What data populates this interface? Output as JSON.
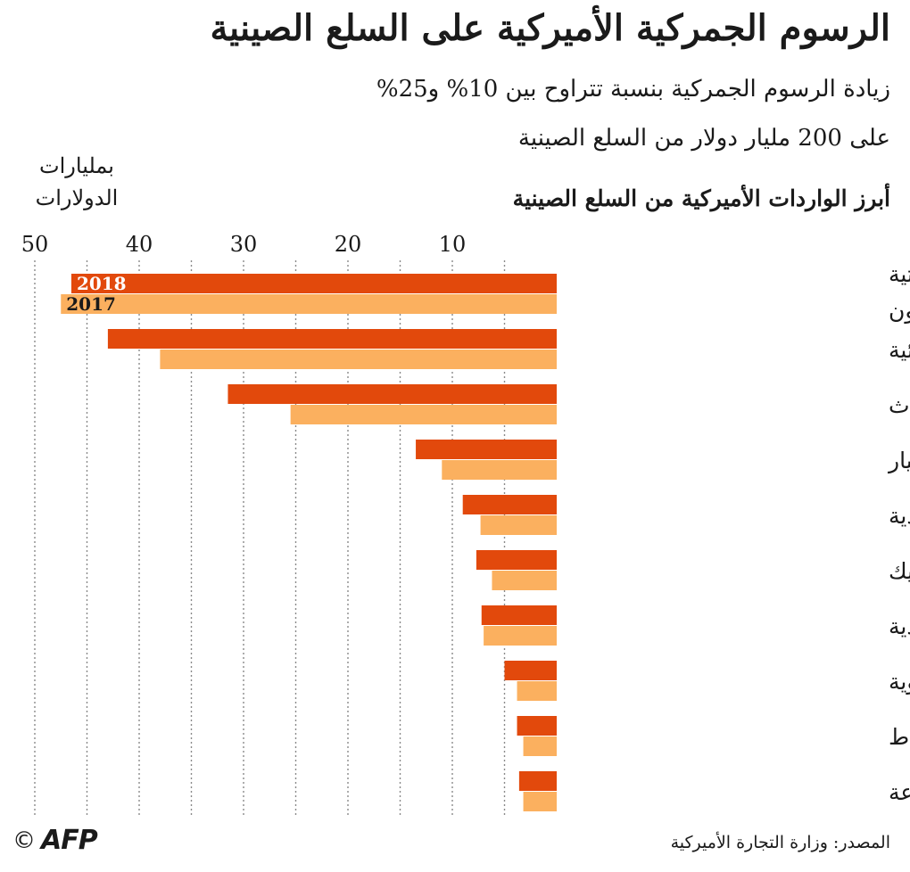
{
  "header": {
    "title": "الرسوم الجمركية الأميركية على السلع الصينية",
    "subtitle_line1": "زيادة الرسوم الجمركية بنسبة تتراوح بين 10% و25%",
    "subtitle_line2": "على 200 مليار دولار من السلع الصينية"
  },
  "footer": {
    "source": "المصدر: وزارة التجارة الأميركية",
    "copyright": "©",
    "agency": "AFP"
  },
  "colors": {
    "series_2018": "#e2490c",
    "series_2017": "#fbb05f",
    "grid": "#8a8a8a"
  },
  "chart_data": {
    "type": "bar",
    "orientation": "horizontal",
    "direction": "right-to-left",
    "heading": "أبرز الواردات الأميركية من السلع الصينية",
    "unit_label": [
      "بمليارات",
      "الدولارات"
    ],
    "xlim": [
      0,
      50
    ],
    "xticks": [
      50,
      40,
      30,
      20,
      10
    ],
    "grid": true,
    "categories": [
      [
        "آلات كهربائية وتجهيزات صوتية",
        "ومعدات أجهزة التلفزيون"
      ],
      [
        "آلات وأجهزة كهربائية"
      ],
      [
        "أثاث"
      ],
      [
        "مركبات آلية وقطع غيار"
      ],
      [
        "منتجات حديدية وفولاذية"
      ],
      [
        "بلاستيك"
      ],
      [
        "سلع جلدية"
      ],
      [
        "مواد كيميائية عضوية"
      ],
      [
        "مطاط"
      ],
      [
        "مواد معدنية أساسية متنوعة"
      ]
    ],
    "series": [
      {
        "name": "2018",
        "values": [
          46.5,
          43,
          31.5,
          13.5,
          9,
          7.7,
          7.2,
          5,
          3.8,
          3.6
        ]
      },
      {
        "name": "2017",
        "values": [
          47.5,
          38,
          25.5,
          11,
          7.3,
          6.2,
          7,
          3.8,
          3.2,
          3.2
        ]
      }
    ]
  }
}
